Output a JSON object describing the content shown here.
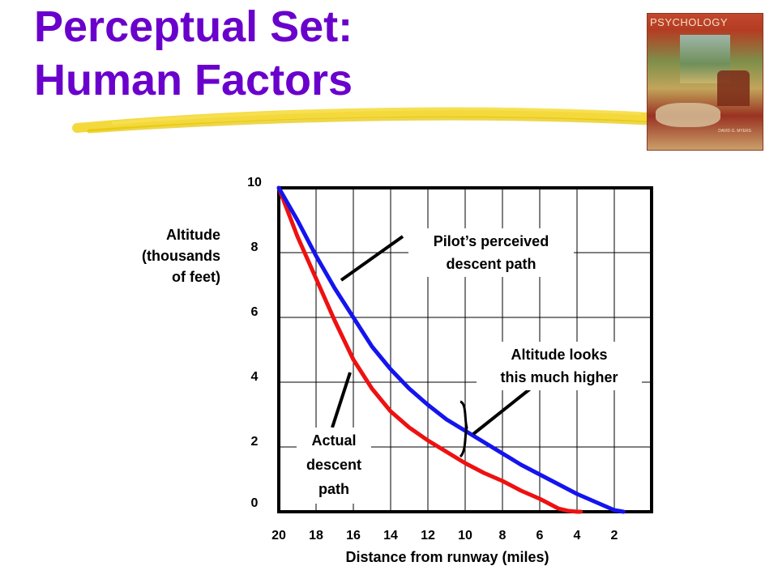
{
  "title_line1": "Perceptual Set:",
  "title_line2": "Human Factors",
  "book_cover": {
    "title": "PSYCHOLOGY",
    "author": "DAVID G. MYERS"
  },
  "colors": {
    "title": "#6a00cc",
    "underline": "#f2d21b",
    "actual": "#ee1111",
    "perceived": "#1414ee",
    "grid": "#000000"
  },
  "chart_data": {
    "type": "line",
    "xlabel": "Distance from runway (miles)",
    "ylabel": [
      "Altitude",
      "(thousands",
      "of feet)"
    ],
    "x_tick_labels": [
      "20",
      "18",
      "16",
      "14",
      "12",
      "10",
      "8",
      "6",
      "4",
      "2"
    ],
    "y_tick_labels": [
      "0",
      "2",
      "4",
      "6",
      "8",
      "10"
    ],
    "xlim": [
      20,
      0
    ],
    "ylim": [
      0,
      10
    ],
    "grid": true,
    "series": [
      {
        "key": "actual",
        "x": [
          20,
          19,
          18,
          17,
          16,
          15,
          14,
          13,
          12,
          11,
          10,
          9,
          8,
          7,
          6,
          5.5,
          5,
          4.5,
          4,
          3.8
        ],
        "y": [
          10,
          8.5,
          7.2,
          5.9,
          4.7,
          3.8,
          3.1,
          2.6,
          2.2,
          1.85,
          1.5,
          1.2,
          0.95,
          0.65,
          0.4,
          0.25,
          0.1,
          0.03,
          0,
          0
        ]
      },
      {
        "key": "perceived",
        "x": [
          20,
          19,
          18,
          17,
          16,
          15,
          14,
          13,
          12,
          11,
          10,
          9,
          8,
          7,
          6,
          5,
          4,
          3,
          2,
          1.5
        ],
        "y": [
          10,
          9.0,
          7.9,
          6.9,
          6.0,
          5.1,
          4.4,
          3.8,
          3.3,
          2.85,
          2.5,
          2.15,
          1.8,
          1.45,
          1.15,
          0.85,
          0.55,
          0.3,
          0.05,
          0
        ]
      }
    ],
    "annotations": [
      {
        "key": "perceived",
        "lines": [
          "Pilot’s perceived",
          "descent path"
        ]
      },
      {
        "key": "higher",
        "lines": [
          "Altitude looks",
          "this much higher"
        ]
      },
      {
        "key": "actual",
        "lines": [
          "Actual",
          "descent",
          "path"
        ]
      }
    ]
  }
}
